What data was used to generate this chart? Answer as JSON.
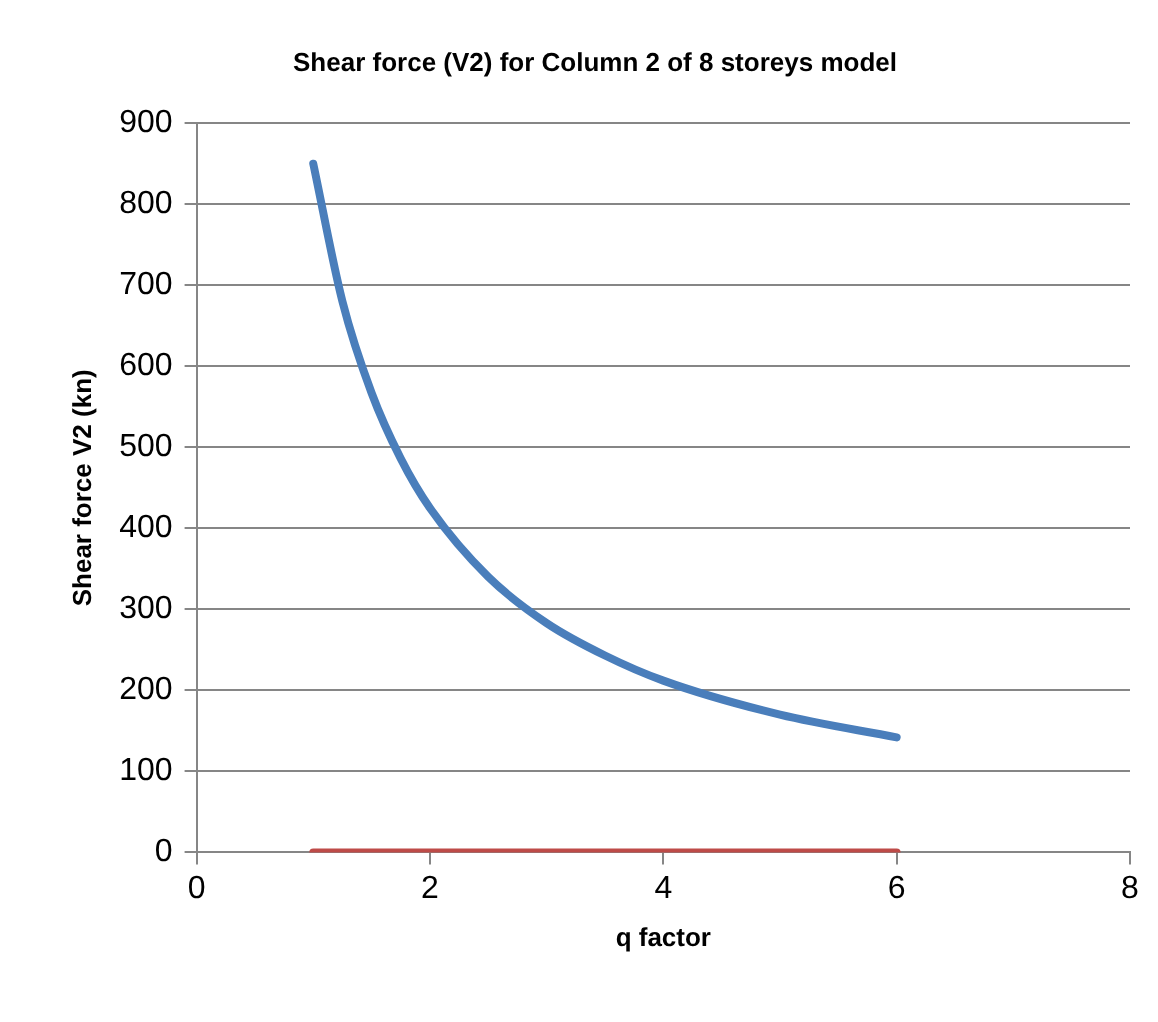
{
  "chart_data": {
    "type": "line",
    "title": "Shear force (V2) for Column 2 of 8 storeys model",
    "xlabel": "q factor",
    "ylabel": "Shear force V2 (kn)",
    "xlim": [
      0,
      8
    ],
    "xticks": [
      0,
      2,
      4,
      6,
      8
    ],
    "ylim": [
      0,
      900
    ],
    "yticks": [
      0,
      100,
      200,
      300,
      400,
      500,
      600,
      700,
      800,
      900
    ],
    "grid": "y",
    "legend": false,
    "marker": "none",
    "line_style": "solid",
    "series": [
      {
        "color": "#4a7ebb",
        "x": [
          1,
          1.25,
          1.5,
          1.75,
          2,
          2.5,
          3,
          3.5,
          4,
          5,
          6
        ],
        "values": [
          850,
          680,
          567,
          486,
          425,
          340,
          283,
          243,
          212,
          170,
          142
        ]
      },
      {
        "color": "#be4b48",
        "x": [
          1,
          6
        ],
        "values": [
          0,
          0
        ]
      }
    ]
  }
}
